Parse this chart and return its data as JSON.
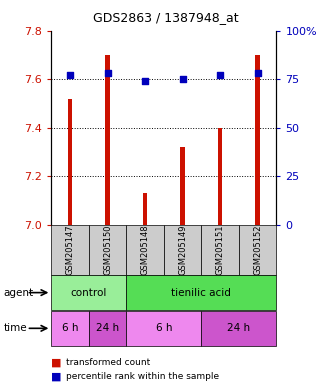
{
  "title": "GDS2863 / 1387948_at",
  "samples": [
    "GSM205147",
    "GSM205150",
    "GSM205148",
    "GSM205149",
    "GSM205151",
    "GSM205152"
  ],
  "bar_values": [
    7.52,
    7.7,
    7.13,
    7.32,
    7.4,
    7.7
  ],
  "percentile_values": [
    77,
    78,
    74,
    75,
    77,
    78
  ],
  "bar_color": "#cc1100",
  "dot_color": "#0000bb",
  "ylim_left": [
    7.0,
    7.8
  ],
  "ylim_right": [
    0,
    100
  ],
  "yticks_left": [
    7.0,
    7.2,
    7.4,
    7.6,
    7.8
  ],
  "yticks_right": [
    0,
    25,
    50,
    75,
    100
  ],
  "grid_values": [
    7.2,
    7.4,
    7.6
  ],
  "bar_width": 0.12,
  "agent_rows": [
    {
      "text": "control",
      "start": 0,
      "end": 2,
      "color": "#99ee99"
    },
    {
      "text": "tienilic acid",
      "start": 2,
      "end": 6,
      "color": "#55dd55"
    }
  ],
  "time_rows": [
    {
      "text": "6 h",
      "start": 0,
      "end": 1,
      "color": "#ee88ee"
    },
    {
      "text": "24 h",
      "start": 1,
      "end": 2,
      "color": "#cc55cc"
    },
    {
      "text": "6 h",
      "start": 2,
      "end": 4,
      "color": "#ee88ee"
    },
    {
      "text": "24 h",
      "start": 4,
      "end": 6,
      "color": "#cc55cc"
    }
  ],
  "legend_items": [
    {
      "color": "#cc1100",
      "label": "transformed count"
    },
    {
      "color": "#0000bb",
      "label": "percentile rank within the sample"
    }
  ],
  "left_axis_color": "#cc1100",
  "right_axis_color": "#0000bb",
  "sample_box_color": "#cccccc"
}
